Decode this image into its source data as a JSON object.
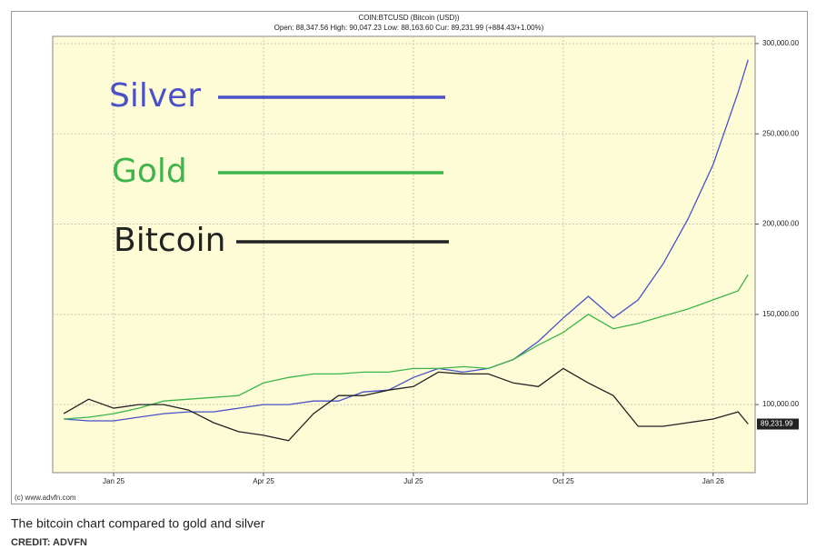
{
  "chart_data": {
    "type": "line",
    "title": "COIN:BTCUSD (Bitcoin (USD))",
    "subtitle": "Open: 88,347.56 High: 90,047.23 Low: 88,163.60 Cur: 89,231.99 (+884.43/+1.00%)",
    "x": [
      -1,
      -0.5,
      0,
      0.5,
      1,
      1.5,
      2,
      2.5,
      3,
      3.5,
      4,
      4.5,
      5,
      5.5,
      6,
      6.5,
      7,
      7.5,
      8,
      8.5,
      9,
      9.5,
      10,
      10.5,
      11,
      11.5,
      12,
      12.5,
      12.7
    ],
    "xlim": [
      -1.22,
      12.84
    ],
    "xticks": [
      {
        "value": 0,
        "label": "Jan 25"
      },
      {
        "value": 3,
        "label": "Apr 25"
      },
      {
        "value": 6,
        "label": "Jul 25"
      },
      {
        "value": 9,
        "label": "Oct 25"
      },
      {
        "value": 12,
        "label": "Jan 26"
      }
    ],
    "ylim": [
      62300,
      304000
    ],
    "yticks": [
      {
        "value": 100000,
        "label": "100,000.00"
      },
      {
        "value": 150000,
        "label": "150,000.00"
      },
      {
        "value": 200000,
        "label": "200,000.00"
      },
      {
        "value": 250000,
        "label": "250,000.00"
      },
      {
        "value": 300000,
        "label": "300,000.00"
      }
    ],
    "grid": true,
    "series": [
      {
        "name": "Silver",
        "color": "#4b50c8",
        "values": [
          92000,
          91000,
          91000,
          93000,
          95000,
          96000,
          96000,
          98000,
          100000,
          100000,
          102000,
          102000,
          107000,
          108000,
          115000,
          120000,
          118000,
          120000,
          125000,
          135000,
          148000,
          160000,
          148000,
          158000,
          178000,
          203000,
          233000,
          273000,
          291000
        ]
      },
      {
        "name": "Gold",
        "color": "#3db54a",
        "values": [
          92000,
          93000,
          95000,
          98000,
          102000,
          103000,
          104000,
          105000,
          112000,
          115000,
          117000,
          117000,
          118000,
          118000,
          120000,
          120000,
          121000,
          120000,
          125000,
          133000,
          140000,
          150000,
          142000,
          145000,
          149000,
          153000,
          158000,
          163000,
          172000
        ]
      },
      {
        "name": "Bitcoin",
        "color": "#222222",
        "values": [
          95000,
          103000,
          98000,
          100000,
          100000,
          97000,
          90000,
          85000,
          83000,
          80000,
          95000,
          105000,
          105000,
          108000,
          110000,
          118000,
          117000,
          117000,
          112000,
          110000,
          120000,
          112000,
          105000,
          88000,
          88000,
          90000,
          92000,
          96000,
          89231.99
        ]
      }
    ],
    "current_label": "89,231.99",
    "source": "(c) www.advfn.com",
    "caption": "The bitcoin chart compared to gold and silver",
    "credit": "CREDIT: ADVFN"
  }
}
